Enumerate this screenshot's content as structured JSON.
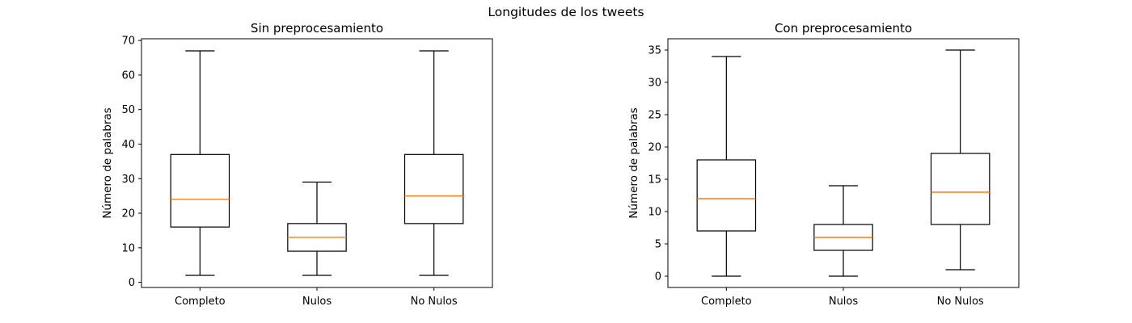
{
  "figure": {
    "title": "Longitudes de los tweets"
  },
  "colors": {
    "box": "#000000",
    "median": "#ff7f0e",
    "background": "#ffffff"
  },
  "chart_data": [
    {
      "type": "box",
      "title": "Sin preprocesamiento",
      "xlabel": "",
      "ylabel": "Número de palabras",
      "categories": [
        "Completo",
        "Nulos",
        "No Nulos"
      ],
      "ylim": [
        -1.5,
        70.5
      ],
      "yticks": [
        0,
        10,
        20,
        30,
        40,
        50,
        60,
        70
      ],
      "grid": false,
      "boxes": [
        {
          "whislo": 2,
          "q1": 16,
          "med": 24,
          "q3": 37,
          "whishi": 67
        },
        {
          "whislo": 2,
          "q1": 9,
          "med": 13,
          "q3": 17,
          "whishi": 29
        },
        {
          "whislo": 2,
          "q1": 17,
          "med": 25,
          "q3": 37,
          "whishi": 67
        }
      ]
    },
    {
      "type": "box",
      "title": "Con preprocesamiento",
      "xlabel": "",
      "ylabel": "Número de palabras",
      "categories": [
        "Completo",
        "Nulos",
        "No Nulos"
      ],
      "ylim": [
        -1.75,
        36.75
      ],
      "yticks": [
        0,
        5,
        10,
        15,
        20,
        25,
        30,
        35
      ],
      "grid": false,
      "boxes": [
        {
          "whislo": 0,
          "q1": 7,
          "med": 12,
          "q3": 18,
          "whishi": 34
        },
        {
          "whislo": 0,
          "q1": 4,
          "med": 6,
          "q3": 8,
          "whishi": 14
        },
        {
          "whislo": 1,
          "q1": 8,
          "med": 13,
          "q3": 19,
          "whishi": 35
        }
      ]
    }
  ]
}
